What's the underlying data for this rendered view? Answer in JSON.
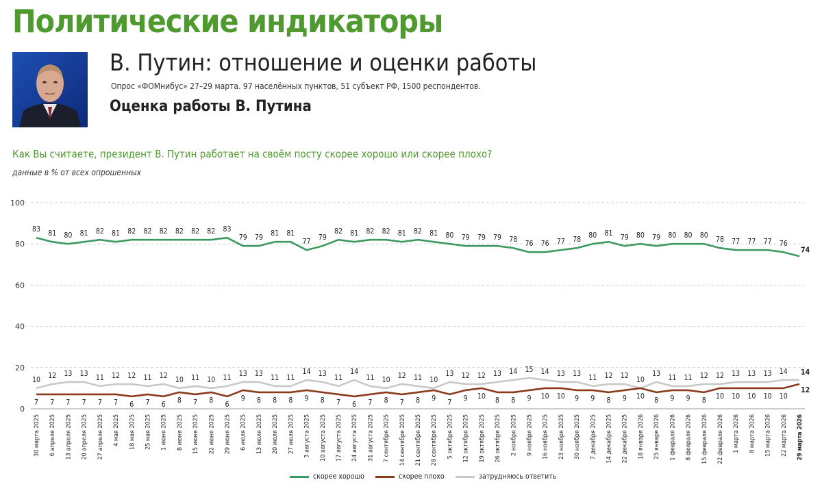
{
  "header": {
    "title": "Политические индикаторы",
    "subtitle": "В. Путин: отношение и оценки работы",
    "survey_info": "Опрос «ФОМнибус» 27–29 марта. 97 населённых пунктов, 51 субъект РФ, 1500 респондентов.",
    "section_title": "Оценка работы В. Путина",
    "question": "Как Вы считаете, президент В. Путин работает на своём посту скорее хорошо или скорее плохо?",
    "note": "данные в % от всех опрошенных"
  },
  "colors": {
    "title_green": "#4e9a2f",
    "good": "#3d9a5f",
    "bad": "#8b3a1a",
    "unsure": "#c8c8c8"
  },
  "chart_data": {
    "type": "line",
    "ylim": [
      0,
      100
    ],
    "yticks": [
      0,
      20,
      40,
      60,
      80,
      100
    ],
    "categories": [
      "30 марта 2025",
      "6 апреля 2025",
      "13 апреля 2025",
      "20 апреля 2025",
      "27 апреля 2025",
      "4 мая 2025",
      "18 мая 2025",
      "25 мая 2025",
      "1 июня 2025",
      "8 июня 2025",
      "15 июня 2025",
      "22 июня 2025",
      "29 июня 2025",
      "6 июля 2025",
      "13 июля 2025",
      "20 июля 2025",
      "27 июля 2025",
      "3 августа 2025",
      "10 августа 2025",
      "17 августа 2025",
      "24 августа 2025",
      "31 августа 2025",
      "7 сентября 2025",
      "14 сентября 2025",
      "21 сентября 2025",
      "28 сентября 2025",
      "5 октября 2025",
      "12 октября 2025",
      "19 октября 2025",
      "26 октября 2025",
      "2 ноября 2025",
      "9 ноября 2025",
      "16 ноября 2025",
      "23 ноября 2025",
      "30 ноября 2025",
      "7 декабря 2025",
      "14 декабря 2025",
      "22 декабря 2025",
      "18 января 2026",
      "25 января 2026",
      "1 февраля 2026",
      "8 февраля 2026",
      "15 февраля 2026",
      "22 февраля 2026",
      "1 марта 2026",
      "8 марта 2026",
      "15 марта 2026",
      "22 марта 2026",
      "29 марта 2026"
    ],
    "series": [
      {
        "name": "скорее хорошо",
        "key": "good",
        "values": [
          83,
          81,
          80,
          81,
          82,
          81,
          82,
          82,
          82,
          82,
          82,
          82,
          83,
          79,
          79,
          81,
          81,
          77,
          79,
          82,
          81,
          82,
          82,
          81,
          82,
          81,
          80,
          79,
          79,
          79,
          78,
          76,
          76,
          77,
          78,
          80,
          81,
          79,
          80,
          79,
          80,
          80,
          80,
          78,
          77,
          77,
          77,
          76,
          74
        ]
      },
      {
        "name": "скорее плохо",
        "key": "bad",
        "values": [
          7,
          7,
          7,
          7,
          7,
          7,
          6,
          7,
          6,
          8,
          7,
          8,
          6,
          9,
          8,
          8,
          8,
          9,
          8,
          7,
          6,
          7,
          8,
          7,
          8,
          9,
          7,
          9,
          10,
          8,
          8,
          9,
          10,
          10,
          9,
          9,
          8,
          9,
          10,
          8,
          9,
          9,
          8,
          10,
          10,
          10,
          10,
          10,
          12
        ]
      },
      {
        "name": "затрудняюсь ответить",
        "key": "unsure",
        "values": [
          10,
          12,
          13,
          13,
          11,
          12,
          12,
          11,
          12,
          10,
          11,
          10,
          11,
          13,
          13,
          11,
          11,
          14,
          13,
          11,
          14,
          11,
          10,
          12,
          11,
          10,
          13,
          12,
          12,
          13,
          14,
          15,
          14,
          13,
          13,
          11,
          12,
          12,
          10,
          13,
          11,
          11,
          12,
          12,
          13,
          13,
          13,
          14,
          14
        ]
      }
    ],
    "legend": [
      "скорее хорошо",
      "скорее плохо",
      "затрудняюсь ответить"
    ]
  }
}
